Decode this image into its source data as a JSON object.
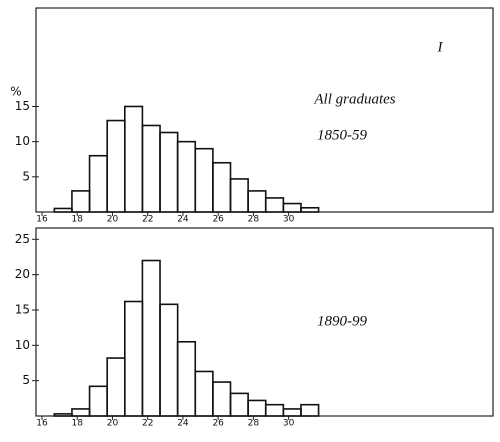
{
  "chart_data": [
    {
      "type": "histogram",
      "ylabel": "%",
      "annotations": [
        "I",
        "All graduates",
        "1850-59"
      ],
      "bins": [
        16.7,
        17.7,
        18.7,
        19.7,
        20.7,
        21.7,
        22.7,
        23.7,
        24.7,
        25.7,
        26.7,
        27.7,
        28.7,
        29.7,
        30.7,
        31.7
      ],
      "values": [
        0.5,
        3,
        8,
        13,
        15,
        12.3,
        11.3,
        10,
        9,
        7,
        4.7,
        3,
        2,
        1.2,
        0.6
      ],
      "xlim": [
        15.66,
        41.6
      ],
      "xticks": [
        16,
        18,
        20,
        22,
        24,
        26,
        28,
        30
      ],
      "ylim": [
        0,
        29
      ],
      "yticks": [
        5,
        10,
        15
      ],
      "color": "#111111"
    },
    {
      "type": "histogram",
      "annotations": [
        "1890-99"
      ],
      "bins": [
        16.7,
        17.7,
        18.7,
        19.7,
        20.7,
        21.7,
        22.7,
        23.7,
        24.7,
        25.7,
        26.7,
        27.7,
        28.7,
        29.7,
        30.7,
        31.7
      ],
      "values": [
        0.3,
        1,
        4.2,
        8.2,
        16.2,
        22,
        15.8,
        10.5,
        6.3,
        4.8,
        3.2,
        2.2,
        1.6,
        1,
        1.6
      ],
      "xlim": [
        15.66,
        41.6
      ],
      "xticks": [
        16,
        18,
        20,
        22,
        24,
        26,
        28,
        30
      ],
      "ylim": [
        0,
        26.6
      ],
      "yticks": [
        5,
        10,
        15,
        20,
        25
      ],
      "color": "#111111"
    }
  ]
}
